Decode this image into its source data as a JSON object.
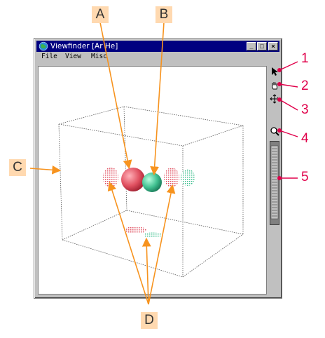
{
  "window": {
    "title": "Viewfinder [Ar He]",
    "menu": [
      "File",
      "View",
      "Misc"
    ],
    "buttons": {
      "minimize": "_",
      "maximize": "□",
      "close": "×"
    }
  },
  "toolbar": {
    "tools": [
      {
        "name": "pointer-tool",
        "icon": "arrow-pointer-icon"
      },
      {
        "name": "hand-tool",
        "icon": "hand-icon"
      },
      {
        "name": "move-tool",
        "icon": "crosshair-icon"
      },
      {
        "name": "zoom-tool",
        "icon": "magnifier-icon"
      },
      {
        "name": "zoom-slider",
        "icon": "slider-icon"
      }
    ]
  },
  "callouts": {
    "letters": [
      "A",
      "B",
      "C",
      "D"
    ],
    "numbers": [
      "1",
      "2",
      "3",
      "4",
      "5"
    ]
  },
  "colors": {
    "title_bar": "#000080",
    "callout_line": "#f7931e",
    "callout_box": "#ffd9b0",
    "callout_number": "#e0004a",
    "atom_red": "#e05060",
    "atom_green": "#40c090"
  }
}
